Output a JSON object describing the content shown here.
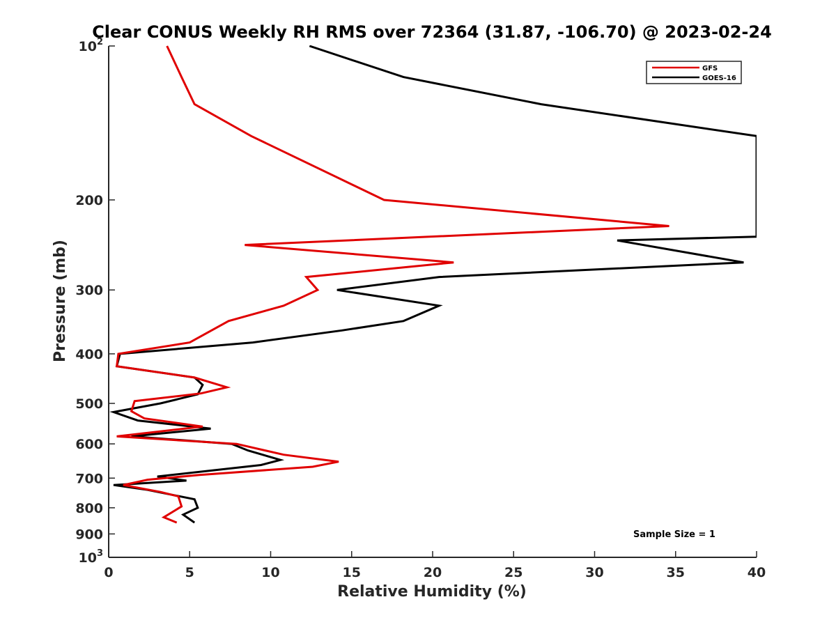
{
  "chart_data": {
    "type": "line",
    "title": "Clear CONUS Weekly RH RMS over 72364 (31.87, -106.70) @ 2023-02-24",
    "xlabel": "Relative Humidity (%)",
    "ylabel": "Pressure (mb)",
    "xlim": [
      0,
      40
    ],
    "ylim": [
      100,
      1000
    ],
    "y_scale": "log",
    "y_reversed": true,
    "x_ticks": [
      0,
      5,
      10,
      15,
      20,
      25,
      30,
      35,
      40
    ],
    "y_ticks": [
      {
        "value": 100,
        "base": "10",
        "exp": "2"
      },
      {
        "value": 200,
        "label": "200"
      },
      {
        "value": 300,
        "label": "300"
      },
      {
        "value": 400,
        "label": "400"
      },
      {
        "value": 500,
        "label": "500"
      },
      {
        "value": 600,
        "label": "600"
      },
      {
        "value": 700,
        "label": "700"
      },
      {
        "value": 800,
        "label": "800"
      },
      {
        "value": 900,
        "label": "900"
      },
      {
        "value": 1000,
        "base": "10",
        "exp": "3"
      }
    ],
    "grid": false,
    "legend_position": "top-right",
    "annotation": "Sample Size = 1",
    "series": [
      {
        "name": "GFS",
        "color": "#e00000",
        "points": [
          [
            3.6,
            100
          ],
          [
            4.5,
            115
          ],
          [
            5.3,
            130
          ],
          [
            8.8,
            150
          ],
          [
            17.0,
            200
          ],
          [
            34.6,
            225
          ],
          [
            8.4,
            245
          ],
          [
            21.3,
            265
          ],
          [
            12.2,
            283
          ],
          [
            12.9,
            300
          ],
          [
            10.8,
            322
          ],
          [
            7.4,
            345
          ],
          [
            5.0,
            380
          ],
          [
            0.6,
            400
          ],
          [
            0.5,
            423
          ],
          [
            5.3,
            445
          ],
          [
            7.3,
            465
          ],
          [
            5.7,
            478
          ],
          [
            1.6,
            495
          ],
          [
            1.4,
            518
          ],
          [
            2.2,
            535
          ],
          [
            5.8,
            555
          ],
          [
            0.5,
            580
          ],
          [
            7.9,
            600
          ],
          [
            10.8,
            630
          ],
          [
            14.2,
            650
          ],
          [
            12.6,
            665
          ],
          [
            5.6,
            690
          ],
          [
            2.4,
            705
          ],
          [
            0.9,
            722
          ],
          [
            3.2,
            745
          ],
          [
            4.3,
            760
          ],
          [
            4.5,
            795
          ],
          [
            3.4,
            835
          ],
          [
            4.2,
            855
          ]
        ]
      },
      {
        "name": "GOES-16",
        "color": "#000000",
        "points": [
          [
            12.4,
            100
          ],
          [
            18.2,
            115
          ],
          [
            26.7,
            130
          ],
          [
            40.0,
            150
          ],
          [
            40.0,
            236
          ],
          [
            31.4,
            240
          ],
          [
            39.2,
            265
          ],
          [
            20.4,
            283
          ],
          [
            14.1,
            300
          ],
          [
            20.4,
            322
          ],
          [
            18.2,
            345
          ],
          [
            14.4,
            360
          ],
          [
            8.9,
            380
          ],
          [
            0.7,
            400
          ],
          [
            0.5,
            423
          ],
          [
            5.3,
            445
          ],
          [
            5.8,
            460
          ],
          [
            5.5,
            480
          ],
          [
            3.2,
            500
          ],
          [
            0.3,
            520
          ],
          [
            1.8,
            540
          ],
          [
            6.3,
            560
          ],
          [
            1.4,
            580
          ],
          [
            7.6,
            600
          ],
          [
            8.6,
            618
          ],
          [
            10.6,
            645
          ],
          [
            9.4,
            660
          ],
          [
            3.0,
            695
          ],
          [
            4.8,
            708
          ],
          [
            0.3,
            722
          ],
          [
            2.4,
            738
          ],
          [
            5.3,
            770
          ],
          [
            5.5,
            800
          ],
          [
            4.6,
            825
          ],
          [
            5.3,
            855
          ]
        ]
      }
    ]
  }
}
